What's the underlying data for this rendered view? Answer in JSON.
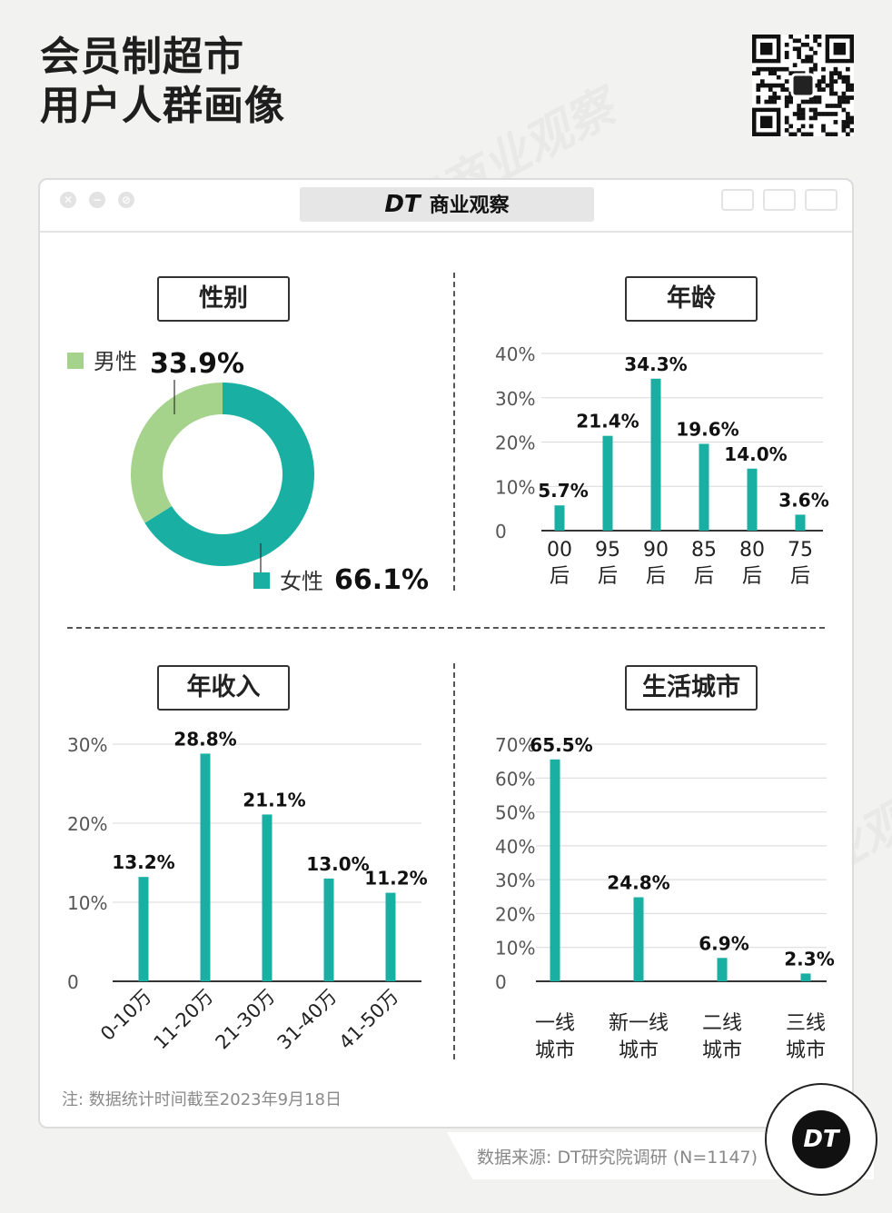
{
  "page": {
    "title_line1": "会员制超市",
    "title_line2": "用户人群画像"
  },
  "window": {
    "brand_mark": "DT",
    "brand_name": "商业观察",
    "close_glyph": "✕",
    "min_glyph": "−",
    "max_glyph": "⊘"
  },
  "watermark": "DT商业观察",
  "colors": {
    "teal": "#1aafa3",
    "green": "#a5d38c",
    "axis": "#333333"
  },
  "sections": {
    "gender": "性别",
    "age": "年龄",
    "income": "年收入",
    "city": "生活城市"
  },
  "footnote": "注: 数据统计时间截至2023年9月18日",
  "source": "数据来源: DT研究院调研 (N=1147)",
  "logo": "DT",
  "chart_data": [
    {
      "id": "gender",
      "type": "pie",
      "title": "性别",
      "slices": [
        {
          "label": "男性",
          "value": 33.9,
          "display": "33.9%",
          "color": "#a5d38c"
        },
        {
          "label": "女性",
          "value": 66.1,
          "display": "66.1%",
          "color": "#1aafa3"
        }
      ]
    },
    {
      "id": "age",
      "type": "bar",
      "title": "年龄",
      "categories": [
        [
          "00",
          "后"
        ],
        [
          "95",
          "后"
        ],
        [
          "90",
          "后"
        ],
        [
          "85",
          "后"
        ],
        [
          "80",
          "后"
        ],
        [
          "75",
          "后"
        ]
      ],
      "values": [
        5.7,
        21.4,
        34.3,
        19.6,
        14.0,
        3.6
      ],
      "labels": [
        "5.7%",
        "21.4%",
        "34.3%",
        "19.6%",
        "14.0%",
        "3.6%"
      ],
      "yticks": [
        "0",
        "10%",
        "20%",
        "30%",
        "40%"
      ],
      "ylim": [
        0,
        40
      ],
      "grid": true
    },
    {
      "id": "income",
      "type": "bar",
      "title": "年收入",
      "categories": [
        "0-10万",
        "11-20万",
        "21-30万",
        "31-40万",
        "41-50万"
      ],
      "values": [
        13.2,
        28.8,
        21.1,
        13.0,
        11.2
      ],
      "labels": [
        "13.2%",
        "28.8%",
        "21.1%",
        "13.0%",
        "11.2%"
      ],
      "yticks": [
        "0",
        "10%",
        "20%",
        "30%"
      ],
      "ylim": [
        0,
        30
      ],
      "grid": true
    },
    {
      "id": "city",
      "type": "bar",
      "title": "生活城市",
      "categories": [
        [
          "一线",
          "城市"
        ],
        [
          "新一线",
          "城市"
        ],
        [
          "二线",
          "城市"
        ],
        [
          "三线",
          "城市"
        ]
      ],
      "values": [
        65.5,
        24.8,
        6.9,
        2.3
      ],
      "labels": [
        "65.5%",
        "24.8%",
        "6.9%",
        "2.3%"
      ],
      "yticks": [
        "0",
        "10%",
        "20%",
        "30%",
        "40%",
        "50%",
        "60%",
        "70%"
      ],
      "ylim": [
        0,
        70
      ],
      "grid": true
    }
  ]
}
